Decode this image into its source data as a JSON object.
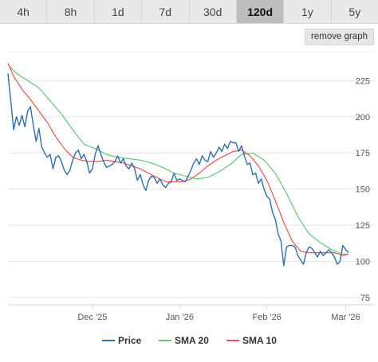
{
  "tabs": [
    {
      "label": "4h",
      "active": false
    },
    {
      "label": "8h",
      "active": false
    },
    {
      "label": "1d",
      "active": false
    },
    {
      "label": "7d",
      "active": false
    },
    {
      "label": "30d",
      "active": false
    },
    {
      "label": "120d",
      "active": true
    },
    {
      "label": "1y",
      "active": false
    },
    {
      "label": "5y",
      "active": false
    }
  ],
  "remove_graph_label": "remove graph",
  "chart_data": {
    "type": "line",
    "x_start": "2025-11-01",
    "x_end": "2026-03-02",
    "ylim": [
      70,
      245
    ],
    "y_ticks": [
      75,
      100,
      125,
      150,
      175,
      200,
      225
    ],
    "x_ticks": [
      {
        "date": "2025-12-01",
        "label": "Dec '25"
      },
      {
        "date": "2026-01-01",
        "label": "Jan '26"
      },
      {
        "date": "2026-02-01",
        "label": "Feb '26"
      },
      {
        "date": "2026-03-01",
        "label": "Mar '26"
      }
    ],
    "grid": true,
    "legend_position": "bottom",
    "series": [
      {
        "name": "Price",
        "color": "#2f6fae",
        "points": [
          [
            "2025-11-01",
            230
          ],
          [
            "2025-11-02",
            211
          ],
          [
            "2025-11-03",
            191
          ],
          [
            "2025-11-04",
            200
          ],
          [
            "2025-11-05",
            194
          ],
          [
            "2025-11-06",
            201
          ],
          [
            "2025-11-07",
            193
          ],
          [
            "2025-11-08",
            204
          ],
          [
            "2025-11-09",
            207
          ],
          [
            "2025-11-10",
            194
          ],
          [
            "2025-11-11",
            183
          ],
          [
            "2025-11-12",
            192
          ],
          [
            "2025-11-13",
            179
          ],
          [
            "2025-11-14",
            175
          ],
          [
            "2025-11-15",
            172
          ],
          [
            "2025-11-16",
            174
          ],
          [
            "2025-11-17",
            164
          ],
          [
            "2025-11-18",
            172
          ],
          [
            "2025-11-19",
            173
          ],
          [
            "2025-11-20",
            169
          ],
          [
            "2025-11-21",
            163
          ],
          [
            "2025-11-22",
            160
          ],
          [
            "2025-11-23",
            163
          ],
          [
            "2025-11-24",
            170
          ],
          [
            "2025-11-25",
            175
          ],
          [
            "2025-11-26",
            177
          ],
          [
            "2025-11-27",
            171
          ],
          [
            "2025-11-28",
            174
          ],
          [
            "2025-11-29",
            169
          ],
          [
            "2025-11-30",
            161
          ],
          [
            "2025-12-01",
            164
          ],
          [
            "2025-12-02",
            174
          ],
          [
            "2025-12-03",
            180
          ],
          [
            "2025-12-04",
            174
          ],
          [
            "2025-12-05",
            169
          ],
          [
            "2025-12-06",
            165
          ],
          [
            "2025-12-07",
            166
          ],
          [
            "2025-12-08",
            167
          ],
          [
            "2025-12-09",
            169
          ],
          [
            "2025-12-10",
            173
          ],
          [
            "2025-12-11",
            168
          ],
          [
            "2025-12-12",
            171
          ],
          [
            "2025-12-13",
            166
          ],
          [
            "2025-12-14",
            164
          ],
          [
            "2025-12-15",
            168
          ],
          [
            "2025-12-16",
            164
          ],
          [
            "2025-12-17",
            156
          ],
          [
            "2025-12-18",
            160
          ],
          [
            "2025-12-19",
            153
          ],
          [
            "2025-12-20",
            149
          ],
          [
            "2025-12-21",
            156
          ],
          [
            "2025-12-22",
            159
          ],
          [
            "2025-12-23",
            158
          ],
          [
            "2025-12-24",
            154
          ],
          [
            "2025-12-25",
            157
          ],
          [
            "2025-12-26",
            153
          ],
          [
            "2025-12-27",
            151
          ],
          [
            "2025-12-28",
            154
          ],
          [
            "2025-12-29",
            155
          ],
          [
            "2025-12-30",
            161
          ],
          [
            "2025-12-31",
            156
          ],
          [
            "2026-01-01",
            157
          ],
          [
            "2026-01-02",
            156
          ],
          [
            "2026-01-03",
            155
          ],
          [
            "2026-01-04",
            159
          ],
          [
            "2026-01-05",
            163
          ],
          [
            "2026-01-06",
            168
          ],
          [
            "2026-01-07",
            171
          ],
          [
            "2026-01-08",
            167
          ],
          [
            "2026-01-09",
            173
          ],
          [
            "2026-01-10",
            170
          ],
          [
            "2026-01-11",
            169
          ],
          [
            "2026-01-12",
            176
          ],
          [
            "2026-01-13",
            172
          ],
          [
            "2026-01-14",
            175
          ],
          [
            "2026-01-15",
            179
          ],
          [
            "2026-01-16",
            176
          ],
          [
            "2026-01-17",
            181
          ],
          [
            "2026-01-18",
            178
          ],
          [
            "2026-01-19",
            183
          ],
          [
            "2026-01-20",
            182
          ],
          [
            "2026-01-21",
            182
          ],
          [
            "2026-01-22",
            176
          ],
          [
            "2026-01-23",
            180
          ],
          [
            "2026-01-24",
            173
          ],
          [
            "2026-01-25",
            167
          ],
          [
            "2026-01-26",
            168
          ],
          [
            "2026-01-27",
            160
          ],
          [
            "2026-01-28",
            161
          ],
          [
            "2026-01-29",
            154
          ],
          [
            "2026-01-30",
            157
          ],
          [
            "2026-01-31",
            150
          ],
          [
            "2026-02-01",
            145
          ],
          [
            "2026-02-02",
            143
          ],
          [
            "2026-02-03",
            134
          ],
          [
            "2026-02-04",
            129
          ],
          [
            "2026-02-05",
            119
          ],
          [
            "2026-02-06",
            114
          ],
          [
            "2026-02-07",
            97
          ],
          [
            "2026-02-08",
            110
          ],
          [
            "2026-02-09",
            111
          ],
          [
            "2026-02-10",
            111
          ],
          [
            "2026-02-11",
            110
          ],
          [
            "2026-02-12",
            104
          ],
          [
            "2026-02-13",
            101
          ],
          [
            "2026-02-14",
            98
          ],
          [
            "2026-02-15",
            106
          ],
          [
            "2026-02-16",
            110
          ],
          [
            "2026-02-17",
            109
          ],
          [
            "2026-02-18",
            106
          ],
          [
            "2026-02-19",
            103
          ],
          [
            "2026-02-20",
            107
          ],
          [
            "2026-02-21",
            104
          ],
          [
            "2026-02-22",
            106
          ],
          [
            "2026-02-23",
            108
          ],
          [
            "2026-02-24",
            106
          ],
          [
            "2026-02-25",
            103
          ],
          [
            "2026-02-26",
            98
          ],
          [
            "2026-02-27",
            100
          ],
          [
            "2026-02-28",
            111
          ],
          [
            "2026-03-01",
            108
          ],
          [
            "2026-03-02",
            106
          ]
        ]
      },
      {
        "name": "SMA 20",
        "color": "#5cc97b",
        "points": [
          [
            "2025-11-01",
            236
          ],
          [
            "2025-11-04",
            230
          ],
          [
            "2025-11-08",
            225
          ],
          [
            "2025-11-12",
            220
          ],
          [
            "2025-11-16",
            211
          ],
          [
            "2025-11-20",
            202
          ],
          [
            "2025-11-24",
            191
          ],
          [
            "2025-11-28",
            181
          ],
          [
            "2025-12-02",
            178
          ],
          [
            "2025-12-06",
            174
          ],
          [
            "2025-12-10",
            172
          ],
          [
            "2025-12-14",
            171
          ],
          [
            "2025-12-18",
            170
          ],
          [
            "2025-12-22",
            168
          ],
          [
            "2025-12-26",
            165
          ],
          [
            "2025-12-30",
            161
          ],
          [
            "2026-01-03",
            159
          ],
          [
            "2026-01-07",
            157
          ],
          [
            "2026-01-11",
            158
          ],
          [
            "2026-01-15",
            162
          ],
          [
            "2026-01-19",
            167
          ],
          [
            "2026-01-23",
            174
          ],
          [
            "2026-01-27",
            175
          ],
          [
            "2026-01-31",
            170
          ],
          [
            "2026-02-04",
            161
          ],
          [
            "2026-02-08",
            147
          ],
          [
            "2026-02-12",
            131
          ],
          [
            "2026-02-16",
            119
          ],
          [
            "2026-02-20",
            113
          ],
          [
            "2026-02-24",
            108
          ],
          [
            "2026-02-28",
            105
          ],
          [
            "2026-03-02",
            105
          ]
        ]
      },
      {
        "name": "SMA 10",
        "color": "#e8534f",
        "points": [
          [
            "2025-11-01",
            237
          ],
          [
            "2025-11-03",
            228
          ],
          [
            "2025-11-06",
            219
          ],
          [
            "2025-11-09",
            212
          ],
          [
            "2025-11-12",
            204
          ],
          [
            "2025-11-15",
            196
          ],
          [
            "2025-11-18",
            186
          ],
          [
            "2025-11-21",
            178
          ],
          [
            "2025-11-24",
            172
          ],
          [
            "2025-11-27",
            170
          ],
          [
            "2025-11-30",
            169
          ],
          [
            "2025-12-03",
            169
          ],
          [
            "2025-12-06",
            170
          ],
          [
            "2025-12-09",
            169
          ],
          [
            "2025-12-12",
            168
          ],
          [
            "2025-12-15",
            166
          ],
          [
            "2025-12-18",
            164
          ],
          [
            "2025-12-21",
            161
          ],
          [
            "2025-12-24",
            158
          ],
          [
            "2025-12-27",
            155
          ],
          [
            "2025-12-30",
            155
          ],
          [
            "2026-01-02",
            155
          ],
          [
            "2026-01-05",
            157
          ],
          [
            "2026-01-08",
            161
          ],
          [
            "2026-01-11",
            166
          ],
          [
            "2026-01-14",
            170
          ],
          [
            "2026-01-17",
            173
          ],
          [
            "2026-01-20",
            176
          ],
          [
            "2026-01-23",
            177
          ],
          [
            "2026-01-26",
            173
          ],
          [
            "2026-01-29",
            166
          ],
          [
            "2026-02-01",
            156
          ],
          [
            "2026-02-04",
            142
          ],
          [
            "2026-02-07",
            127
          ],
          [
            "2026-02-10",
            114
          ],
          [
            "2026-02-13",
            107
          ],
          [
            "2026-02-16",
            106
          ],
          [
            "2026-02-19",
            106
          ],
          [
            "2026-02-22",
            106
          ],
          [
            "2026-02-25",
            106
          ],
          [
            "2026-02-28",
            104
          ],
          [
            "2026-03-02",
            105
          ]
        ]
      }
    ]
  }
}
